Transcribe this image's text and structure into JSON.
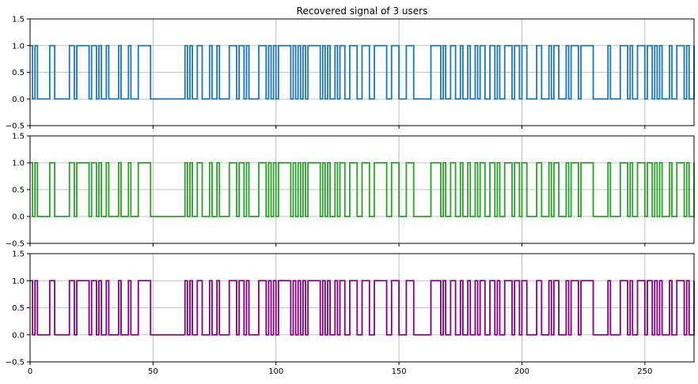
{
  "chart_data": [
    {
      "type": "line",
      "title": "Recovered signal of 3 users",
      "xlabel": "",
      "ylabel": "",
      "xlim": [
        0,
        270
      ],
      "ylim": [
        -0.5,
        1.5
      ],
      "x_ticks": [
        0,
        50,
        100,
        150,
        200,
        250
      ],
      "x_tick_labels": [
        "",
        "",
        "",
        "",
        "",
        ""
      ],
      "y_ticks": [
        -0.5,
        0.0,
        0.5,
        1.0,
        1.5
      ],
      "y_tick_labels": [
        "−0.5",
        "0.0",
        "0.5",
        "1.0",
        "1.5"
      ],
      "grid": true,
      "step": "post",
      "series": [
        {
          "color": "#1f77b4",
          "x": [
            0,
            1,
            2,
            3,
            8,
            10,
            16,
            18,
            19,
            24,
            25,
            27,
            28,
            29,
            31,
            32,
            36,
            37,
            40,
            41,
            44,
            49,
            52,
            63,
            64,
            65,
            66,
            68,
            70,
            73,
            74,
            76,
            77,
            81,
            84,
            85,
            87,
            88,
            89,
            93,
            96,
            97,
            98,
            99,
            100,
            101,
            106,
            107,
            108,
            109,
            110,
            111,
            112,
            113,
            118,
            119,
            120,
            121,
            122,
            124,
            125,
            126,
            128,
            130,
            133,
            135,
            138,
            140,
            145,
            147,
            150,
            153,
            156,
            163,
            167,
            168,
            169,
            171,
            173,
            175,
            176,
            178,
            179,
            181,
            182,
            183,
            185,
            187,
            189,
            190,
            191,
            193,
            196,
            197,
            199,
            200,
            202,
            206,
            208,
            211,
            212,
            213,
            215,
            218,
            219,
            220,
            223,
            224,
            229,
            232,
            235,
            236,
            240,
            243,
            244,
            245,
            247,
            250,
            251,
            253,
            254,
            255,
            256,
            257,
            260,
            261,
            263,
            266,
            267,
            268,
            270
          ],
          "y": [
            1,
            0,
            1,
            0,
            1,
            0,
            1,
            0,
            1,
            0,
            1,
            0,
            1,
            0,
            1,
            0,
            1,
            0,
            1,
            0,
            1,
            0,
            0,
            1,
            0,
            1,
            0,
            1,
            0,
            1,
            0,
            1,
            0,
            1,
            0,
            1,
            0,
            1,
            0,
            1,
            0,
            1,
            0,
            1,
            0,
            1,
            0,
            1,
            0,
            1,
            0,
            1,
            0,
            1,
            0,
            1,
            0,
            1,
            0,
            1,
            0,
            1,
            0,
            1,
            0,
            1,
            0,
            1,
            0,
            1,
            0,
            1,
            0,
            1,
            0,
            1,
            0,
            1,
            0,
            1,
            0,
            1,
            0,
            1,
            0,
            1,
            0,
            1,
            0,
            1,
            0,
            1,
            0,
            1,
            0,
            1,
            0,
            1,
            0,
            1,
            0,
            1,
            0,
            1,
            0,
            1,
            0,
            1,
            0,
            0,
            1,
            0,
            1,
            0,
            1,
            0,
            1,
            0,
            1,
            0,
            1,
            0,
            1,
            0,
            1,
            0,
            1,
            0,
            1,
            0,
            1
          ]
        }
      ]
    },
    {
      "type": "line",
      "title": "",
      "xlabel": "",
      "ylabel": "",
      "xlim": [
        0,
        270
      ],
      "ylim": [
        -0.5,
        1.5
      ],
      "x_ticks": [
        0,
        50,
        100,
        150,
        200,
        250
      ],
      "x_tick_labels": [
        "",
        "",
        "",
        "",
        "",
        ""
      ],
      "y_ticks": [
        -0.5,
        0.0,
        0.5,
        1.0,
        1.5
      ],
      "y_tick_labels": [
        "−0.5",
        "0.0",
        "0.5",
        "1.0",
        "1.5"
      ],
      "grid": true,
      "step": "post",
      "series": [
        {
          "color": "#2ca02c",
          "x": [
            0,
            1,
            2,
            3,
            8,
            10,
            16,
            18,
            19,
            24,
            25,
            27,
            28,
            29,
            31,
            32,
            36,
            37,
            40,
            41,
            44,
            49,
            52,
            63,
            64,
            65,
            66,
            68,
            70,
            73,
            74,
            76,
            77,
            81,
            84,
            85,
            87,
            88,
            89,
            93,
            96,
            97,
            98,
            99,
            100,
            101,
            106,
            107,
            108,
            109,
            110,
            111,
            112,
            113,
            118,
            119,
            120,
            121,
            122,
            124,
            125,
            126,
            128,
            130,
            133,
            135,
            138,
            140,
            145,
            147,
            150,
            153,
            156,
            163,
            167,
            168,
            169,
            171,
            173,
            175,
            176,
            178,
            179,
            181,
            182,
            183,
            185,
            187,
            189,
            190,
            191,
            193,
            196,
            197,
            199,
            200,
            202,
            206,
            208,
            211,
            212,
            213,
            215,
            218,
            219,
            220,
            223,
            224,
            229,
            232,
            235,
            236,
            240,
            243,
            244,
            245,
            247,
            250,
            251,
            253,
            254,
            255,
            256,
            257,
            260,
            261,
            263,
            266,
            267,
            268,
            270
          ],
          "y": [
            1,
            0,
            1,
            0,
            1,
            0,
            1,
            0,
            1,
            0,
            1,
            0,
            1,
            0,
            1,
            0,
            1,
            0,
            1,
            0,
            1,
            0,
            0,
            1,
            0,
            1,
            0,
            1,
            0,
            1,
            0,
            1,
            0,
            1,
            0,
            1,
            0,
            1,
            0,
            1,
            0,
            1,
            0,
            1,
            0,
            1,
            0,
            1,
            0,
            1,
            0,
            1,
            0,
            1,
            0,
            1,
            0,
            1,
            0,
            1,
            0,
            1,
            0,
            1,
            0,
            1,
            0,
            1,
            0,
            1,
            0,
            1,
            0,
            1,
            0,
            1,
            0,
            1,
            0,
            1,
            0,
            1,
            0,
            1,
            0,
            1,
            0,
            1,
            0,
            1,
            0,
            1,
            0,
            1,
            0,
            1,
            0,
            1,
            0,
            1,
            0,
            1,
            0,
            1,
            0,
            1,
            0,
            1,
            0,
            0,
            1,
            0,
            1,
            0,
            1,
            0,
            1,
            0,
            1,
            0,
            1,
            0,
            1,
            0,
            1,
            0,
            1,
            0,
            1,
            0,
            1
          ]
        }
      ]
    },
    {
      "type": "line",
      "title": "",
      "xlabel": "",
      "ylabel": "",
      "xlim": [
        0,
        270
      ],
      "ylim": [
        -0.5,
        1.5
      ],
      "x_ticks": [
        0,
        50,
        100,
        150,
        200,
        250
      ],
      "x_tick_labels": [
        "0",
        "50",
        "100",
        "150",
        "200",
        "250"
      ],
      "y_ticks": [
        -0.5,
        0.0,
        0.5,
        1.0,
        1.5
      ],
      "y_tick_labels": [
        "−0.5",
        "0.0",
        "0.5",
        "1.0",
        "1.5"
      ],
      "grid": true,
      "step": "post",
      "series": [
        {
          "color": "#800080",
          "x": [
            0,
            1,
            2,
            3,
            8,
            10,
            16,
            18,
            19,
            24,
            25,
            27,
            28,
            29,
            31,
            32,
            36,
            37,
            40,
            41,
            44,
            49,
            52,
            63,
            64,
            65,
            66,
            68,
            70,
            73,
            74,
            76,
            77,
            81,
            84,
            85,
            87,
            88,
            89,
            93,
            96,
            97,
            98,
            99,
            100,
            101,
            106,
            107,
            108,
            109,
            110,
            111,
            112,
            113,
            118,
            119,
            120,
            121,
            122,
            124,
            125,
            126,
            128,
            130,
            133,
            135,
            138,
            140,
            145,
            147,
            150,
            153,
            156,
            163,
            167,
            168,
            169,
            171,
            173,
            175,
            176,
            178,
            179,
            181,
            182,
            183,
            185,
            187,
            189,
            190,
            191,
            193,
            196,
            197,
            199,
            200,
            202,
            206,
            208,
            211,
            212,
            213,
            215,
            218,
            219,
            220,
            223,
            224,
            229,
            232,
            235,
            236,
            240,
            243,
            244,
            245,
            247,
            250,
            251,
            253,
            254,
            255,
            256,
            257,
            260,
            261,
            263,
            266,
            267,
            268,
            270
          ],
          "y": [
            1,
            0,
            1,
            0,
            1,
            0,
            1,
            0,
            1,
            0,
            1,
            0,
            1,
            0,
            1,
            0,
            1,
            0,
            1,
            0,
            1,
            0,
            0,
            1,
            0,
            1,
            0,
            1,
            0,
            1,
            0,
            1,
            0,
            1,
            0,
            1,
            0,
            1,
            0,
            1,
            0,
            1,
            0,
            1,
            0,
            1,
            0,
            1,
            0,
            1,
            0,
            1,
            0,
            1,
            0,
            1,
            0,
            1,
            0,
            1,
            0,
            1,
            0,
            1,
            0,
            1,
            0,
            1,
            0,
            1,
            0,
            1,
            0,
            1,
            0,
            1,
            0,
            1,
            0,
            1,
            0,
            1,
            0,
            1,
            0,
            1,
            0,
            1,
            0,
            1,
            0,
            1,
            0,
            1,
            0,
            1,
            0,
            1,
            0,
            1,
            0,
            1,
            0,
            1,
            0,
            1,
            0,
            1,
            0,
            0,
            1,
            0,
            1,
            0,
            1,
            0,
            1,
            0,
            1,
            0,
            1,
            0,
            1,
            0,
            1,
            0,
            1,
            0,
            1,
            0,
            1
          ]
        }
      ]
    }
  ]
}
